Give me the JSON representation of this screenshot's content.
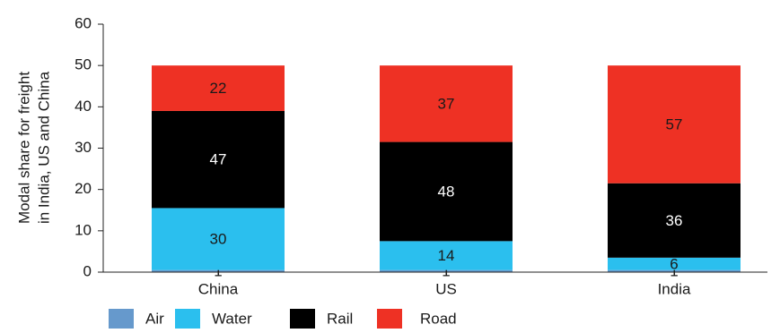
{
  "chart_data": {
    "type": "stacked-bar",
    "ylabel": [
      "Modal share for freight",
      "in India, US and China"
    ],
    "categories": [
      "China",
      "US",
      "India"
    ],
    "series": [
      {
        "name": "Air",
        "color": "#6699cc",
        "values": [
          0.5,
          0.5,
          0.5
        ],
        "value_labels": [
          "1",
          "1",
          "1"
        ]
      },
      {
        "name": "Water",
        "color": "#2bbfee",
        "values": [
          15,
          7,
          3
        ],
        "value_labels": [
          "30",
          "14",
          "6"
        ]
      },
      {
        "name": "Rail",
        "color": "#000000",
        "values": [
          23.5,
          24,
          18
        ],
        "value_labels": [
          "47",
          "48",
          "36"
        ]
      },
      {
        "name": "Road",
        "color": "#ee3124",
        "values": [
          11,
          18.5,
          28.5
        ],
        "value_labels": [
          "22",
          "37",
          "57"
        ]
      }
    ],
    "ylim": [
      0,
      60
    ],
    "yticks": [
      0,
      10,
      20,
      30,
      40,
      50,
      60
    ],
    "grid": false,
    "legend": "bottom"
  }
}
